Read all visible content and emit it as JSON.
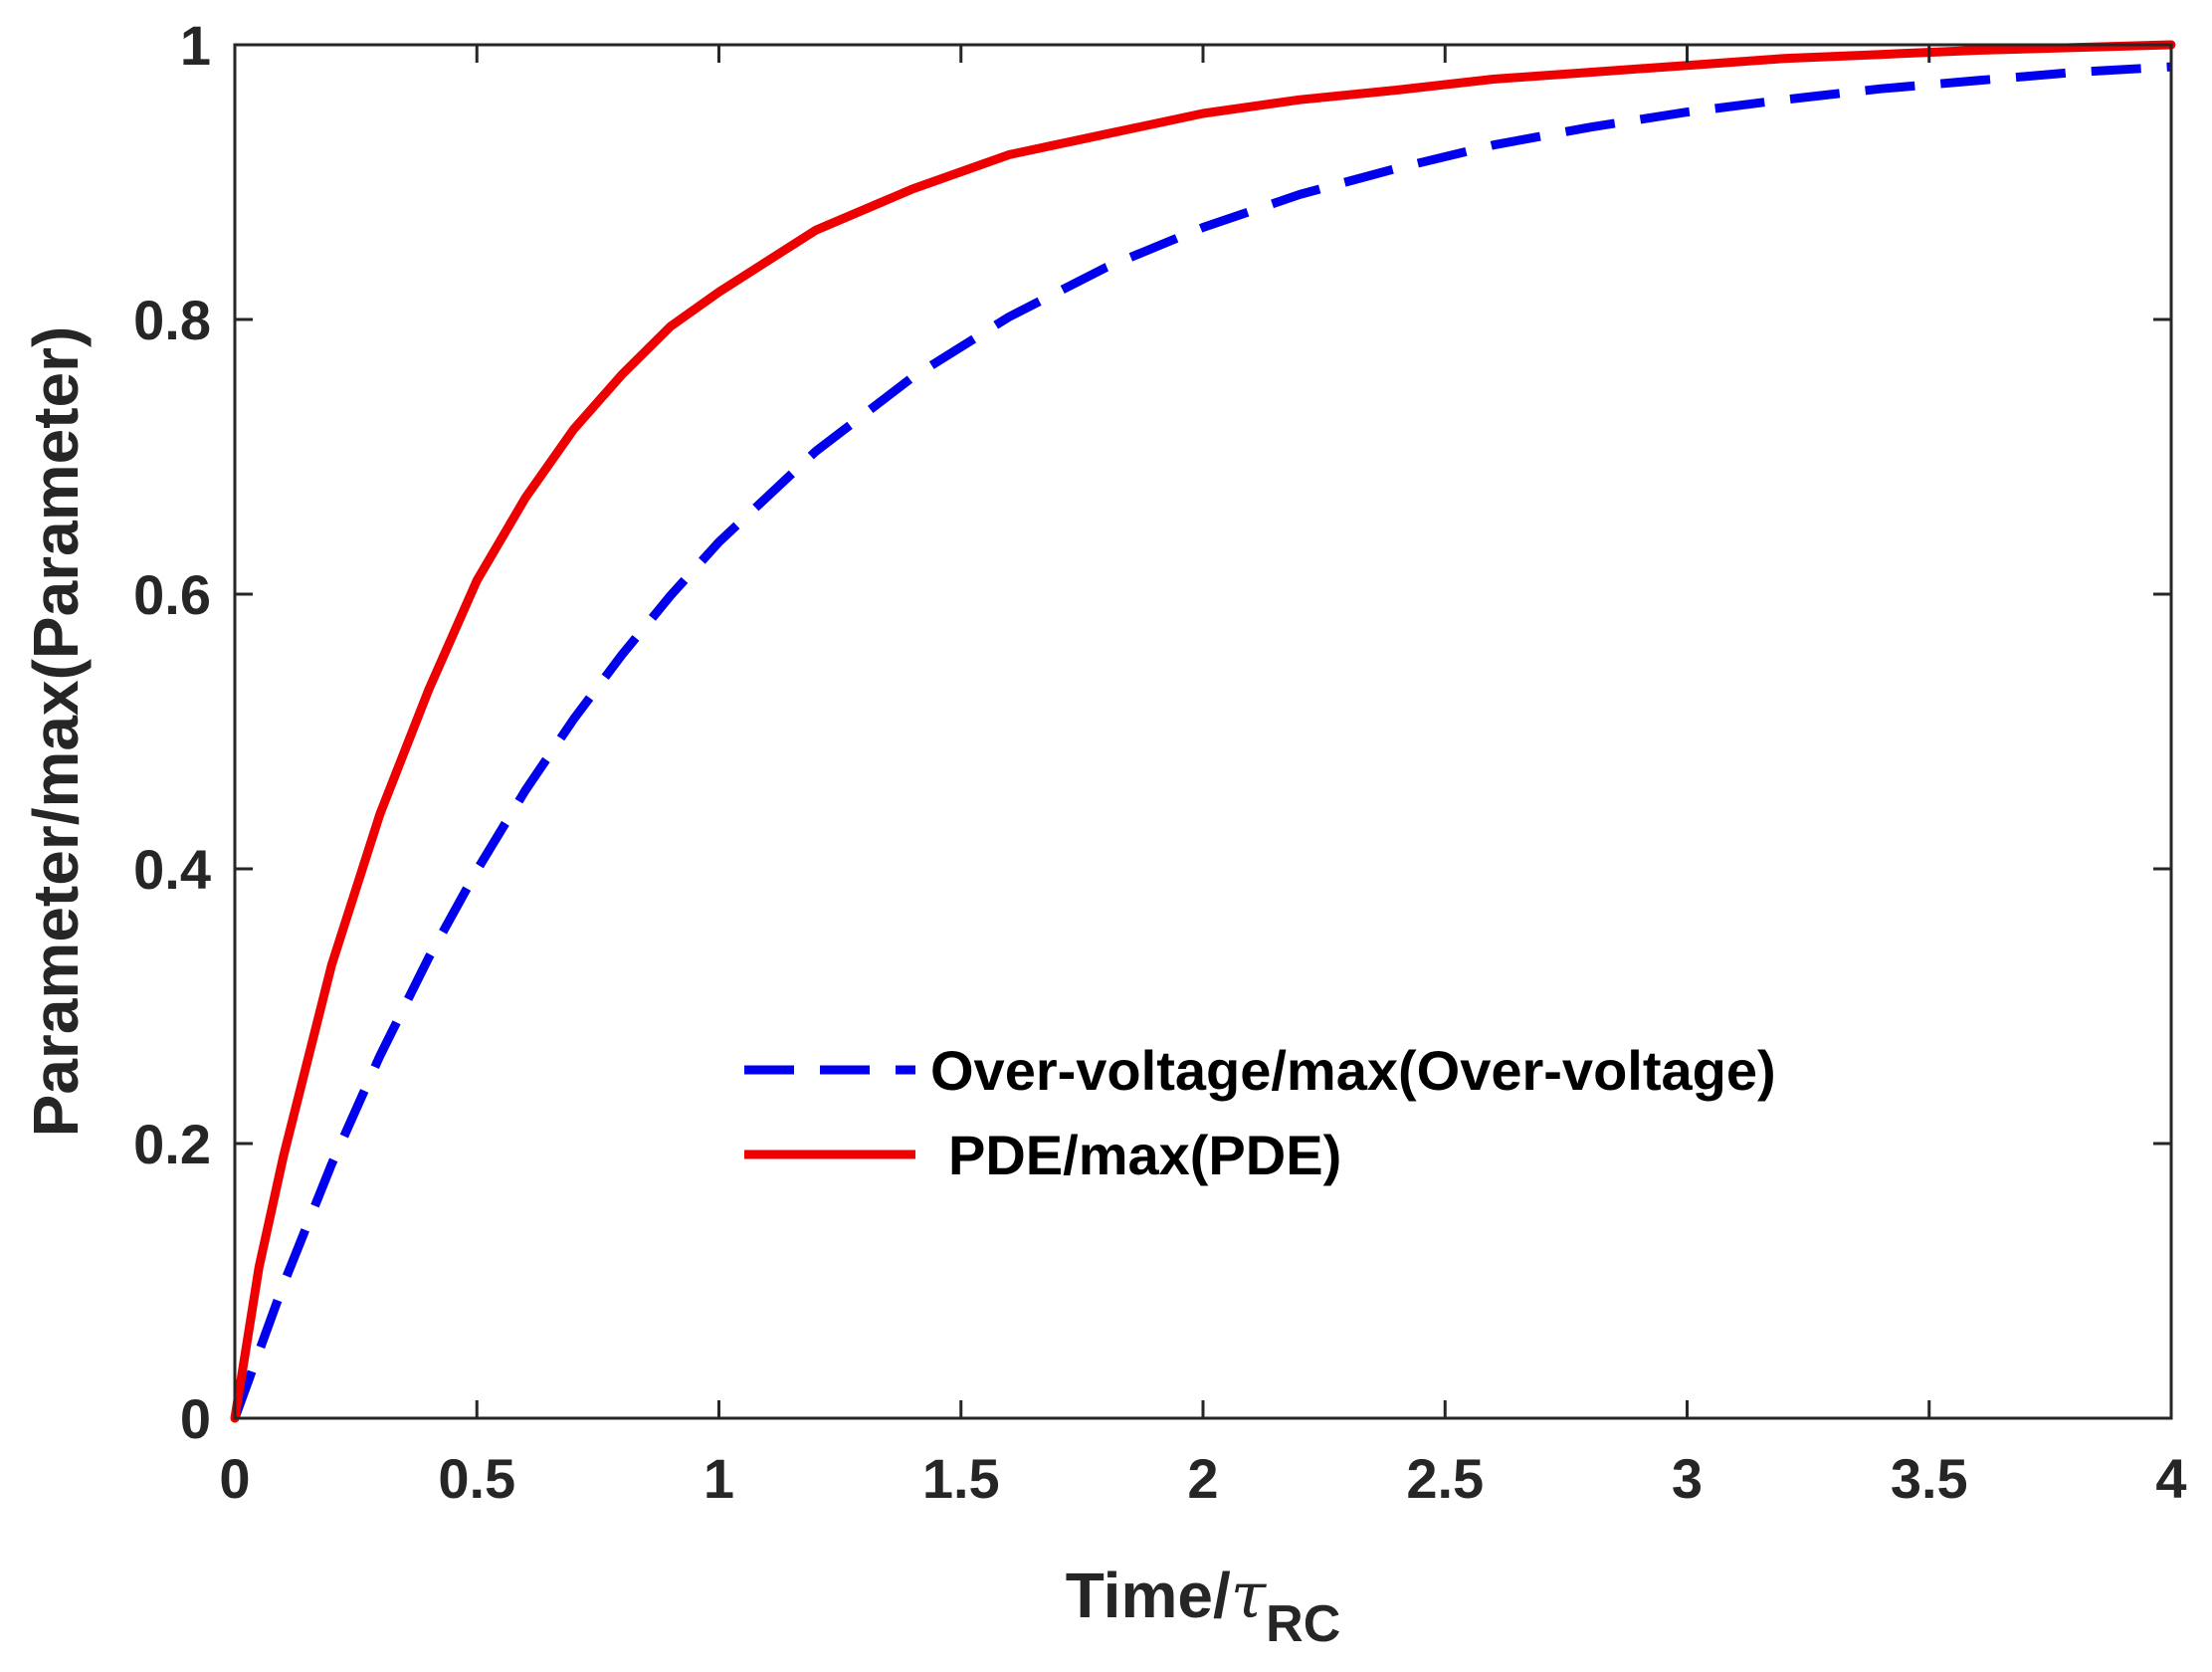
{
  "chart_data": {
    "type": "line",
    "title": "",
    "xlabel_main": "Time/",
    "xlabel_symbol": "τ",
    "xlabel_subscript": "RC",
    "ylabel": "Parameter/max(Parameter)",
    "xlim": [
      0,
      4
    ],
    "ylim": [
      0,
      1
    ],
    "xticks": [
      0,
      0.5,
      1,
      1.5,
      2,
      2.5,
      3,
      3.5,
      4
    ],
    "xtick_labels": [
      "0",
      "0.5",
      "1",
      "1.5",
      "2",
      "2.5",
      "3",
      "3.5",
      "4"
    ],
    "yticks": [
      0,
      0.2,
      0.4,
      0.6,
      0.8,
      1
    ],
    "ytick_labels": [
      "0",
      "0.2",
      "0.4",
      "0.6",
      "0.8",
      "1"
    ],
    "grid": false,
    "legend_position": "lower-right",
    "series": [
      {
        "name": "Over-voltage/max(Over-voltage)",
        "color": "#0000ee",
        "style": "dashed",
        "x": [
          0,
          0.1,
          0.2,
          0.3,
          0.4,
          0.5,
          0.6,
          0.7,
          0.8,
          0.9,
          1.0,
          1.2,
          1.4,
          1.6,
          1.8,
          2.0,
          2.2,
          2.4,
          2.6,
          2.8,
          3.0,
          3.2,
          3.4,
          3.6,
          3.8,
          4.0
        ],
        "values": [
          0,
          0.097,
          0.185,
          0.264,
          0.335,
          0.399,
          0.457,
          0.509,
          0.556,
          0.599,
          0.638,
          0.704,
          0.758,
          0.802,
          0.838,
          0.867,
          0.891,
          0.91,
          0.927,
          0.94,
          0.951,
          0.96,
          0.968,
          0.974,
          0.98,
          0.984
        ]
      },
      {
        "name": "PDE/max(PDE)",
        "color": "#ee0000",
        "style": "solid",
        "x": [
          0,
          0.05,
          0.1,
          0.2,
          0.3,
          0.4,
          0.5,
          0.6,
          0.7,
          0.8,
          0.9,
          1.0,
          1.2,
          1.4,
          1.6,
          1.8,
          2.0,
          2.2,
          2.4,
          2.6,
          2.8,
          3.0,
          3.2,
          3.4,
          3.6,
          3.8,
          4.0
        ],
        "values": [
          0,
          0.11,
          0.19,
          0.33,
          0.44,
          0.53,
          0.61,
          0.67,
          0.72,
          0.76,
          0.795,
          0.82,
          0.865,
          0.895,
          0.92,
          0.935,
          0.95,
          0.96,
          0.967,
          0.975,
          0.98,
          0.985,
          0.99,
          0.993,
          0.996,
          0.998,
          1.0
        ]
      }
    ]
  }
}
